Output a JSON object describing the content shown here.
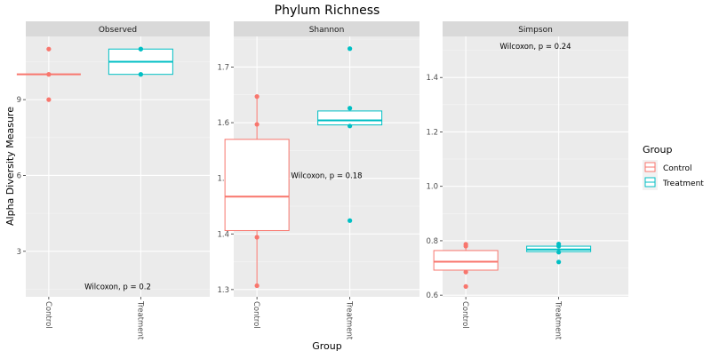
{
  "chart_data": {
    "type": "boxplot",
    "title": "Phylum Richness",
    "xlabel": "Group",
    "ylabel": "Alpha Diversity Measure",
    "legend": {
      "title": "Group",
      "position": "right",
      "entries": [
        {
          "label": "Control",
          "color": "#F8766D"
        },
        {
          "label": "Treatment",
          "color": "#00BFC4"
        }
      ]
    },
    "categories": [
      "Control",
      "Treatment"
    ],
    "panels": [
      {
        "name": "Observed",
        "ylim": [
          1.2,
          11.5
        ],
        "yticks": [
          3,
          6,
          9
        ],
        "annotation": {
          "text": "Wilcoxon, p = 0.2",
          "x": 1.5,
          "y": 1.6
        },
        "boxes": [
          {
            "group": "Control",
            "min": 10,
            "q1": 10,
            "median": 10,
            "q3": 10,
            "max": 10,
            "points": [
              11,
              10,
              10,
              9
            ]
          },
          {
            "group": "Treatment",
            "min": 10,
            "q1": 10,
            "median": 10.5,
            "q3": 11,
            "max": 11,
            "points": [
              11,
              11,
              10,
              10
            ]
          }
        ]
      },
      {
        "name": "Shannon",
        "ylim": [
          1.287,
          1.755
        ],
        "yticks": [
          1.3,
          1.4,
          1.5,
          1.6,
          1.7
        ],
        "annotation": {
          "text": "Wilcoxon, p = 0.18",
          "x": 1.5,
          "y": 1.505
        },
        "boxes": [
          {
            "group": "Control",
            "min": 1.307,
            "q1": 1.406,
            "median": 1.467,
            "q3": 1.57,
            "max": 1.647,
            "points": [
              1.647,
              1.597,
              1.394,
              1.307
            ]
          },
          {
            "group": "Treatment",
            "min": 1.594,
            "q1": 1.596,
            "median": 1.604,
            "q3": 1.621,
            "max": 1.621,
            "points": [
              1.733,
              1.626,
              1.594,
              1.424
            ]
          }
        ]
      },
      {
        "name": "Simpson",
        "ylim": [
          0.594,
          1.551
        ],
        "yticks": [
          0.6,
          0.8,
          1.0,
          1.2,
          1.4
        ],
        "annotation": {
          "text": "Wilcoxon, p = 0.24",
          "x": 1.5,
          "y": 1.515
        },
        "boxes": [
          {
            "group": "Control",
            "min": 0.685,
            "q1": 0.692,
            "median": 0.723,
            "q3": 0.764,
            "max": 0.787,
            "points": [
              0.787,
              0.78,
              0.685,
              0.632
            ]
          },
          {
            "group": "Treatment",
            "min": 0.758,
            "q1": 0.76,
            "median": 0.768,
            "q3": 0.78,
            "max": 0.788,
            "points": [
              0.788,
              0.78,
              0.758,
              0.722
            ]
          }
        ]
      }
    ]
  }
}
